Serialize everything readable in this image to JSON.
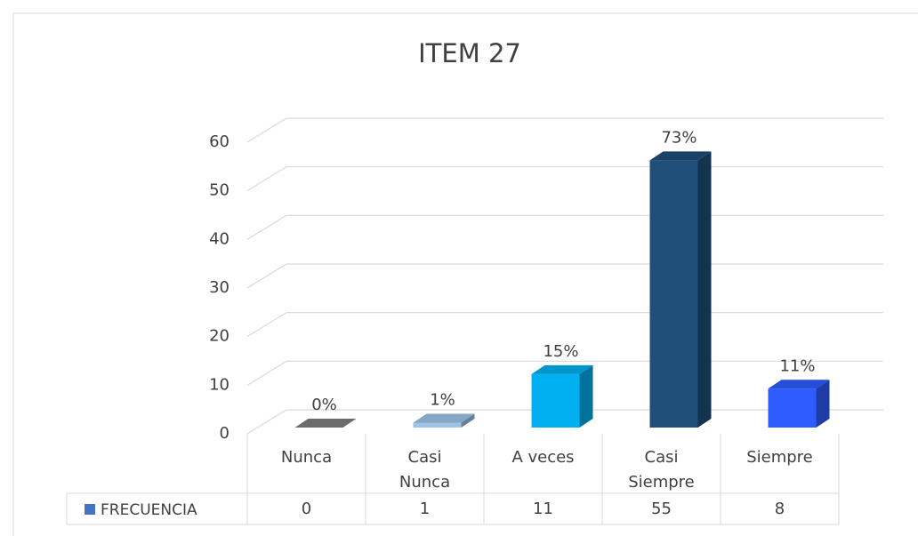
{
  "chart_data": {
    "type": "bar3d",
    "title": "ITEM 27",
    "categories": [
      "Nunca",
      "Casi Nunca",
      "A veces",
      "Casi Siempre",
      "Siempre"
    ],
    "series": [
      {
        "name": "FRECUENCIA",
        "color": "#4472c4",
        "colors": [
          "#7f7f7f",
          "#9dc3e6",
          "#00b0f0",
          "#1f4e79",
          "#2e5bff"
        ],
        "values": [
          0,
          1,
          11,
          55,
          8
        ],
        "value_labels": [
          "0%",
          "1%",
          "15%",
          "73%",
          "11%"
        ]
      }
    ],
    "ylim": [
      0,
      60
    ],
    "yticks": [
      0,
      10,
      20,
      30,
      40,
      50,
      60
    ],
    "grid": true,
    "data_table": true
  }
}
